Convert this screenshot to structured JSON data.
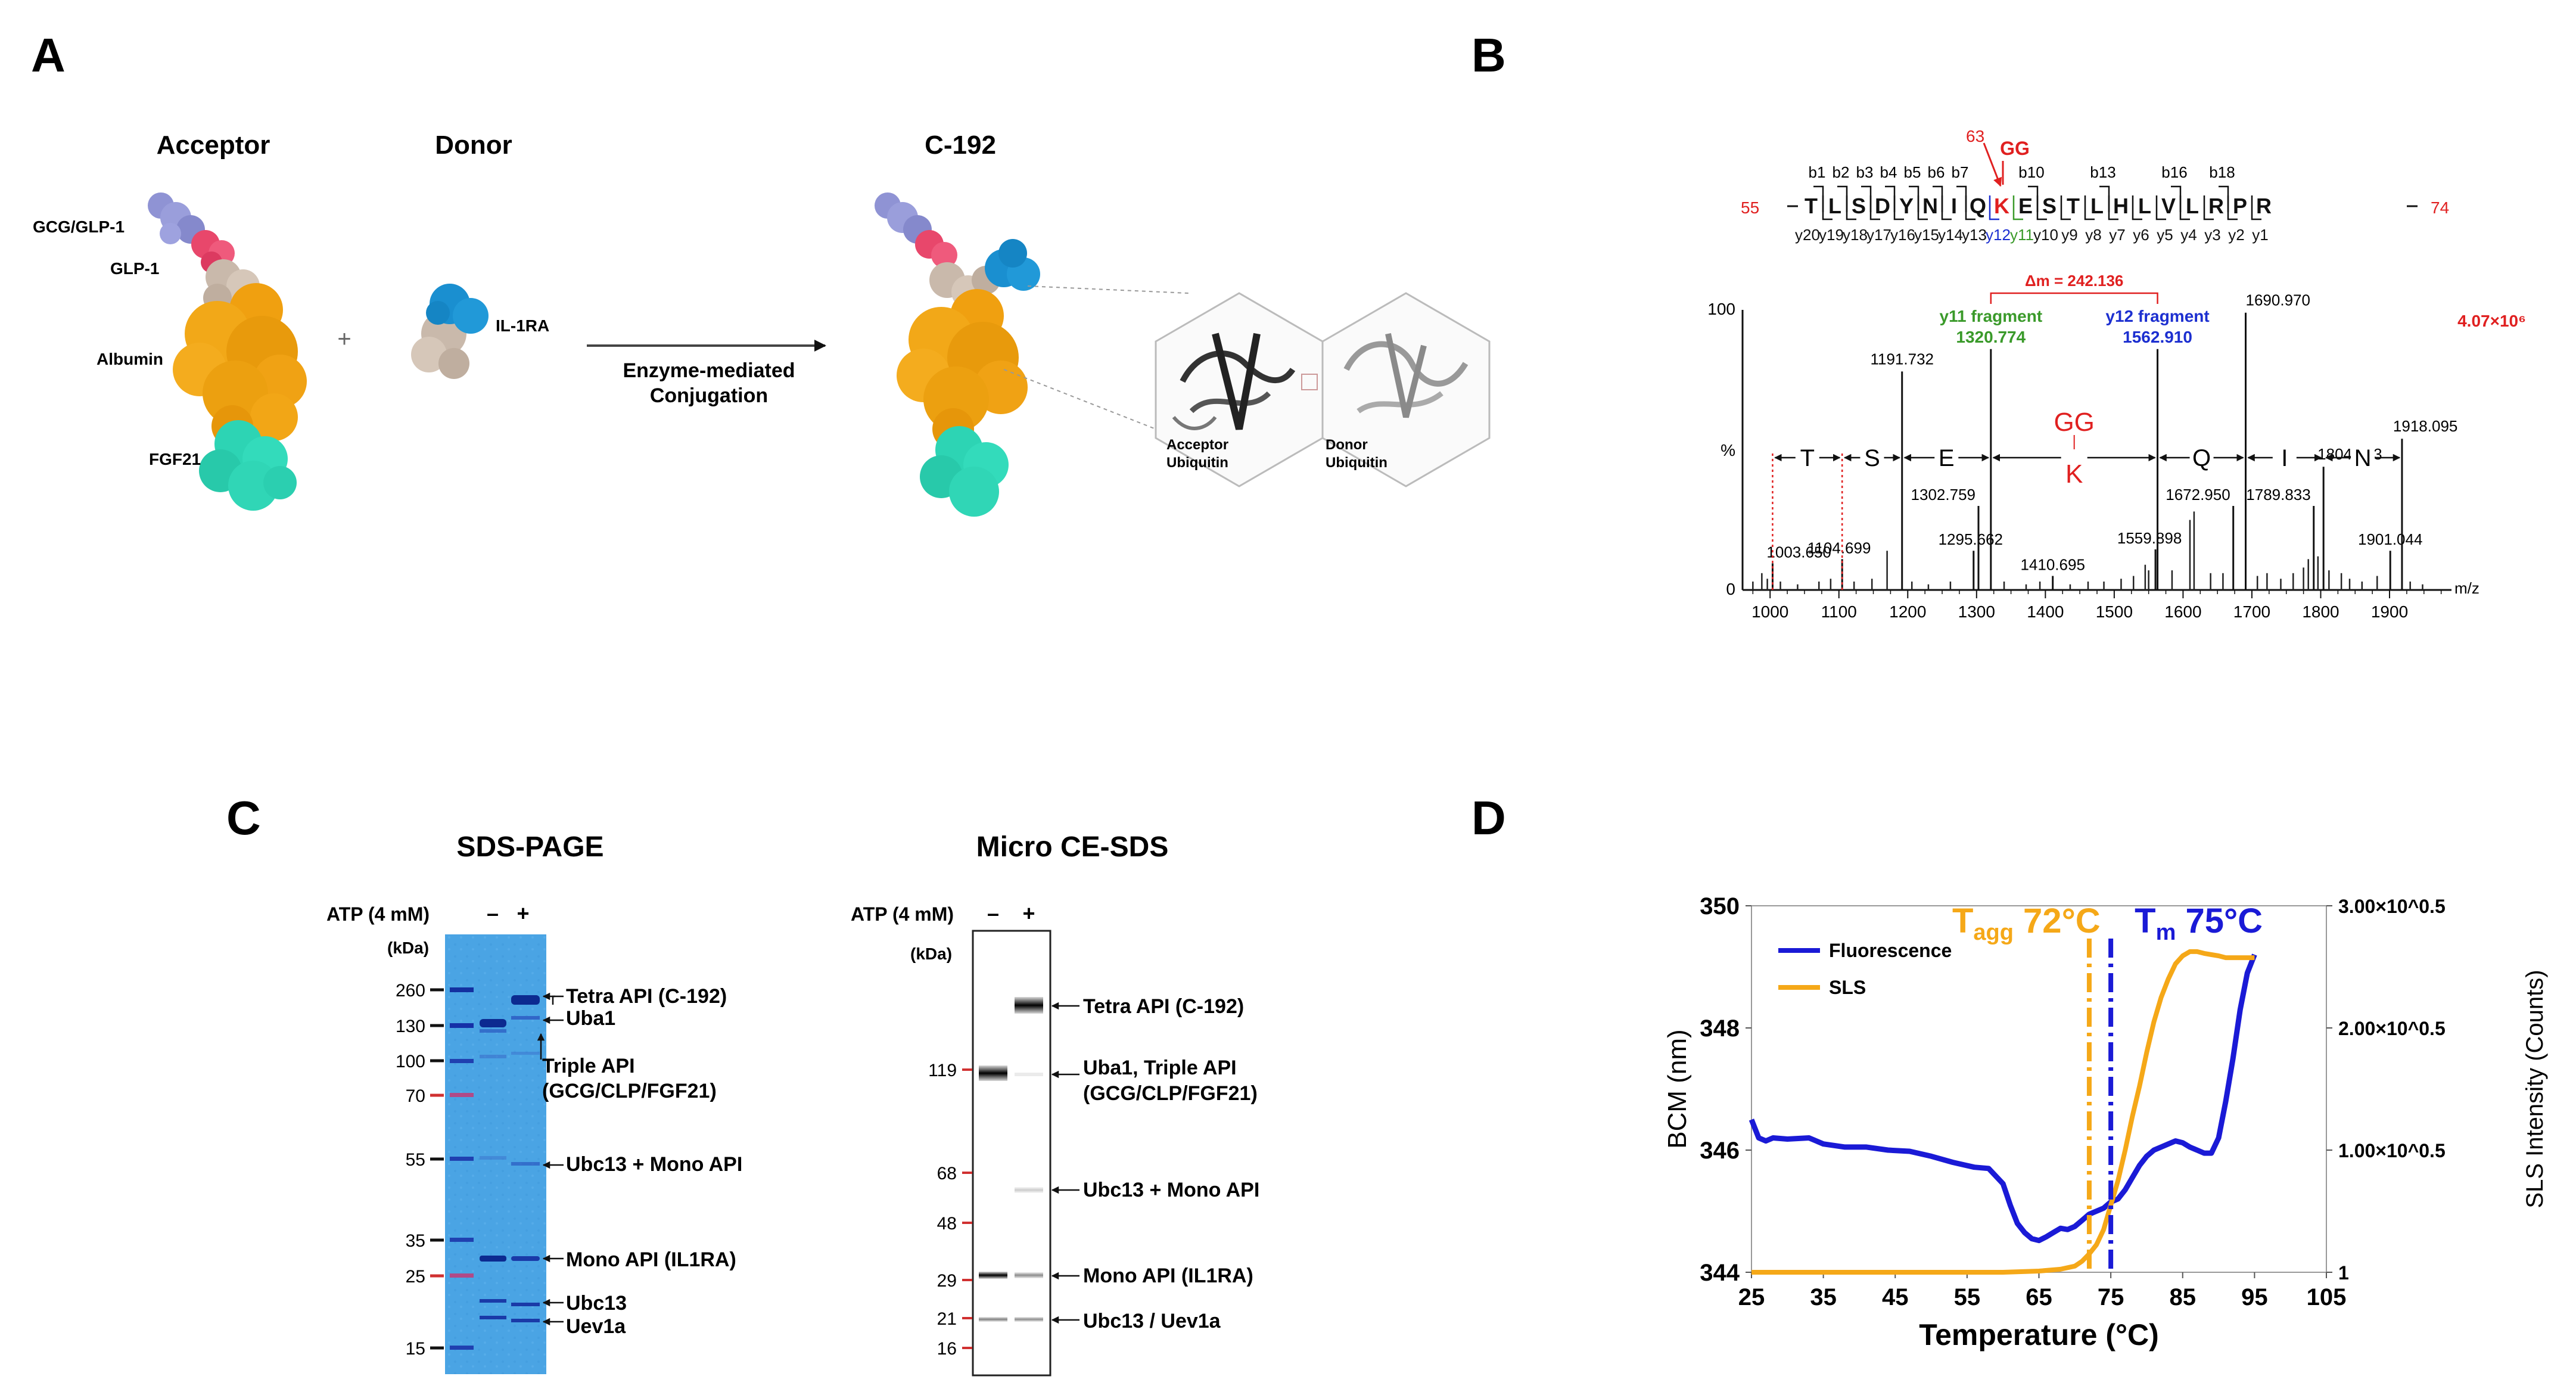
{
  "panels": {
    "a": "A",
    "b": "B",
    "c": "C",
    "d": "D"
  },
  "panel_a": {
    "acceptor_title": "Acceptor",
    "donor_title": "Donor",
    "product_title": "C-192",
    "label_gcg_glp1": "GCG/GLP-1",
    "label_glp1": "GLP-1",
    "label_albumin": "Albumin",
    "label_fgf21": "FGF21",
    "plus": "+",
    "label_il1ra": "IL-1RA",
    "arrow_line1": "Enzyme-mediated",
    "arrow_line2": "Conjugation",
    "ubiq_acceptor_line1": "Acceptor",
    "ubiq_acceptor_line2": "Ubiquitin",
    "ubiq_donor_line1": "Donor",
    "ubiq_donor_line2": "Ubiquitin",
    "colors": {
      "gcg": "#8f93d4",
      "glp": "#e8476b",
      "linker": "#c9b9ab",
      "albumin": "#f0a010",
      "fgf21": "#2dd4b4",
      "il1ra": "#1a8fd0"
    }
  },
  "panel_b": {
    "site_number": "63",
    "gg_top": "GG",
    "start_residue": "55",
    "end_residue": "74",
    "sequence": [
      "T",
      "L",
      "S",
      "D",
      "Y",
      "N",
      "I",
      "Q",
      "K",
      "E",
      "S",
      "T",
      "L",
      "H",
      "L",
      "V",
      "L",
      "R",
      "P",
      "R"
    ],
    "b_ions": [
      {
        "label": "b1",
        "after": 0
      },
      {
        "label": "b2",
        "after": 1
      },
      {
        "label": "b3",
        "after": 2
      },
      {
        "label": "b4",
        "after": 3
      },
      {
        "label": "b5",
        "after": 4
      },
      {
        "label": "b6",
        "after": 5
      },
      {
        "label": "b7",
        "after": 6
      },
      {
        "label": "b10",
        "after": 9
      },
      {
        "label": "b13",
        "after": 12
      },
      {
        "label": "b16",
        "after": 15
      },
      {
        "label": "b18",
        "after": 17
      }
    ],
    "y_ions": [
      "y20",
      "y19",
      "y18",
      "y17",
      "y16",
      "y15",
      "y14",
      "y13",
      "y12",
      "y11",
      "y10",
      "y9",
      "y8",
      "y7",
      "y6",
      "y5",
      "y4",
      "y3",
      "y2",
      "y1"
    ],
    "delta_mass": "Δm = 242.136",
    "y11_title": "y11 fragment",
    "y11_mz": "1320.774",
    "y12_title": "y12 fragment",
    "y12_mz": "1562.910",
    "intensity": "4.07×10⁶",
    "y_top": "100",
    "y_mid": "%",
    "y_zero": "0",
    "x_unit": "m/z",
    "x_ticks": [
      1000,
      1100,
      1200,
      1300,
      1400,
      1500,
      1600,
      1700,
      1800,
      1900
    ],
    "gap_letters": [
      "T",
      "S",
      "E",
      "Q",
      "I",
      "N"
    ],
    "gap_mod_top": "GG",
    "gap_mod_bottom": "K",
    "colors": {
      "red": "#e02020",
      "green": "#3a9a2a",
      "blue": "#1c2fd0"
    }
  },
  "chart_data": [
    {
      "type": "bar",
      "title": "",
      "xlabel": "m/z",
      "ylabel": "%",
      "xlim": [
        960,
        1990
      ],
      "ylim": [
        0,
        100
      ],
      "labeled_peaks": [
        {
          "mz": 1003.65,
          "rel": 9.5,
          "label": "1003.650"
        },
        {
          "mz": 1104.699,
          "rel": 11.0,
          "label": "1104.699"
        },
        {
          "mz": 1191.732,
          "rel": 78.0,
          "label": "1191.732"
        },
        {
          "mz": 1295.662,
          "rel": 14.0,
          "label": "1295.662"
        },
        {
          "mz": 1302.759,
          "rel": 30.0,
          "label": "1302.759"
        },
        {
          "mz": 1320.774,
          "rel": 86.0,
          "label": "1320.774"
        },
        {
          "mz": 1410.695,
          "rel": 5.0,
          "label": "1410.695"
        },
        {
          "mz": 1559.898,
          "rel": 14.5,
          "label": "1559.898"
        },
        {
          "mz": 1562.91,
          "rel": 86.0,
          "label": "1562.910"
        },
        {
          "mz": 1672.95,
          "rel": 30.0,
          "label": "1672.950"
        },
        {
          "mz": 1690.97,
          "rel": 99.0,
          "label": "1690.970"
        },
        {
          "mz": 1789.833,
          "rel": 30.0,
          "label": "1789.833"
        },
        {
          "mz": 1804.053,
          "rel": 44.0,
          "label": "1804.053"
        },
        {
          "mz": 1901.044,
          "rel": 14.0,
          "label": "1901.044"
        },
        {
          "mz": 1918.095,
          "rel": 54.0,
          "label": "1918.095"
        }
      ],
      "minor_peaks": [
        {
          "mz": 975,
          "rel": 3
        },
        {
          "mz": 988,
          "rel": 6
        },
        {
          "mz": 996,
          "rel": 4
        },
        {
          "mz": 1015,
          "rel": 3
        },
        {
          "mz": 1040,
          "rel": 2
        },
        {
          "mz": 1071,
          "rel": 3
        },
        {
          "mz": 1088,
          "rel": 4
        },
        {
          "mz": 1122,
          "rel": 3
        },
        {
          "mz": 1148,
          "rel": 4
        },
        {
          "mz": 1170,
          "rel": 14
        },
        {
          "mz": 1206,
          "rel": 3
        },
        {
          "mz": 1230,
          "rel": 2
        },
        {
          "mz": 1262,
          "rel": 3
        },
        {
          "mz": 1340,
          "rel": 3
        },
        {
          "mz": 1372,
          "rel": 2
        },
        {
          "mz": 1392,
          "rel": 3
        },
        {
          "mz": 1436,
          "rel": 2
        },
        {
          "mz": 1462,
          "rel": 3
        },
        {
          "mz": 1485,
          "rel": 3
        },
        {
          "mz": 1510,
          "rel": 4
        },
        {
          "mz": 1528,
          "rel": 5
        },
        {
          "mz": 1545,
          "rel": 9
        },
        {
          "mz": 1550,
          "rel": 7
        },
        {
          "mz": 1584,
          "rel": 7
        },
        {
          "mz": 1610,
          "rel": 25
        },
        {
          "mz": 1616,
          "rel": 28
        },
        {
          "mz": 1640,
          "rel": 6
        },
        {
          "mz": 1658,
          "rel": 6
        },
        {
          "mz": 1708,
          "rel": 5
        },
        {
          "mz": 1722,
          "rel": 6
        },
        {
          "mz": 1742,
          "rel": 4
        },
        {
          "mz": 1760,
          "rel": 6
        },
        {
          "mz": 1775,
          "rel": 8
        },
        {
          "mz": 1782,
          "rel": 11
        },
        {
          "mz": 1796,
          "rel": 12
        },
        {
          "mz": 1812,
          "rel": 7
        },
        {
          "mz": 1830,
          "rel": 6
        },
        {
          "mz": 1842,
          "rel": 4
        },
        {
          "mz": 1860,
          "rel": 3
        },
        {
          "mz": 1882,
          "rel": 5
        },
        {
          "mz": 1930,
          "rel": 3
        },
        {
          "mz": 1948,
          "rel": 2
        }
      ]
    },
    {
      "type": "line",
      "title": "",
      "xlabel": "Temperature (°C)",
      "ylabel": "BCM (nm)",
      "y2label": "SLS Intensity (Counts)",
      "xlim": [
        25,
        105
      ],
      "ylim": [
        344,
        350
      ],
      "x_ticks": [
        25,
        35,
        45,
        55,
        65,
        75,
        85,
        95,
        105
      ],
      "y_ticks": [
        344,
        346,
        348,
        350
      ],
      "y2_ticks": [
        "1",
        "1.00×10^0.5",
        "2.00×10^0.5",
        "3.00×10^0.5"
      ],
      "legend_position": "top-left",
      "series": [
        {
          "name": "Fluorescence",
          "color": "#1a1ad6",
          "axis": "left",
          "x": [
            25,
            26,
            27,
            28,
            30,
            33,
            35,
            38,
            41,
            44,
            47,
            50,
            53,
            56,
            58,
            60,
            61,
            62,
            63,
            64,
            65,
            66,
            67,
            68,
            69,
            70,
            71,
            72,
            73,
            74,
            75,
            76,
            77,
            78,
            79,
            80,
            81,
            82,
            83,
            84,
            85,
            86,
            87,
            88,
            89,
            90,
            91,
            92,
            93,
            94,
            95
          ],
          "y": [
            346.5,
            346.2,
            346.15,
            346.2,
            346.18,
            346.2,
            346.1,
            346.05,
            346.05,
            346.0,
            345.98,
            345.9,
            345.8,
            345.72,
            345.7,
            345.45,
            345.1,
            344.8,
            344.65,
            344.55,
            344.52,
            344.58,
            344.65,
            344.72,
            344.7,
            344.75,
            344.85,
            344.95,
            345.0,
            345.05,
            345.15,
            345.2,
            345.35,
            345.55,
            345.75,
            345.9,
            346.0,
            346.05,
            346.1,
            346.15,
            346.12,
            346.05,
            346.0,
            345.95,
            345.95,
            346.2,
            346.8,
            347.5,
            348.3,
            348.9,
            349.2
          ]
        },
        {
          "name": "SLS",
          "color": "#f5a818",
          "axis": "right",
          "x": [
            25,
            30,
            40,
            50,
            60,
            65,
            68,
            70,
            71,
            72,
            73,
            74,
            75,
            76,
            77,
            78,
            79,
            80,
            81,
            82,
            83,
            84,
            85,
            86,
            87,
            88,
            89,
            90,
            91,
            92,
            93,
            94,
            95
          ],
          "y": [
            344.0,
            344.0,
            344.0,
            344.0,
            344.0,
            344.02,
            344.05,
            344.1,
            344.18,
            344.3,
            344.45,
            344.7,
            345.1,
            345.5,
            346.0,
            346.55,
            347.05,
            347.6,
            348.1,
            348.5,
            348.8,
            349.05,
            349.18,
            349.25,
            349.25,
            349.22,
            349.2,
            349.18,
            349.15,
            349.15,
            349.15,
            349.15,
            349.15
          ]
        }
      ],
      "markers": [
        {
          "name": "Tagg",
          "label_main": "T",
          "label_sub": "agg",
          "label_value": " 72°C",
          "x": 72,
          "color": "#f5a818"
        },
        {
          "name": "Tm",
          "label_main": "T",
          "label_sub": "m",
          "label_value": " 75°C",
          "x": 75,
          "color": "#1a1ad6"
        }
      ]
    }
  ],
  "panel_c": {
    "sds_title": "SDS-PAGE",
    "ce_title": "Micro CE-SDS",
    "atp_label": "ATP (4 mM)",
    "lane_minus": "–",
    "lane_plus": "+",
    "kda_label": "(kDa)",
    "sds_markers": [
      "260",
      "130",
      "100",
      "70",
      "55",
      "35",
      "25",
      "15"
    ],
    "ce_markers": [
      "119",
      "68",
      "48",
      "29",
      "21",
      "16"
    ],
    "sds_labels": [
      "Tetra API (C-192)",
      "Uba1",
      "Triple API",
      "(GCG/CLP/FGF21)",
      "Ubc13 + Mono API",
      "Mono API (IL1RA)",
      "Ubc13",
      "Uev1a"
    ],
    "ce_labels": [
      "Tetra API (C-192)",
      "Uba1, Triple API",
      "(GCG/CLP/FGF21)",
      "Ubc13 + Mono API",
      "Mono API (IL1RA)",
      "Ubc13 / Uev1a"
    ],
    "gel_color": "#4ca6e6"
  }
}
